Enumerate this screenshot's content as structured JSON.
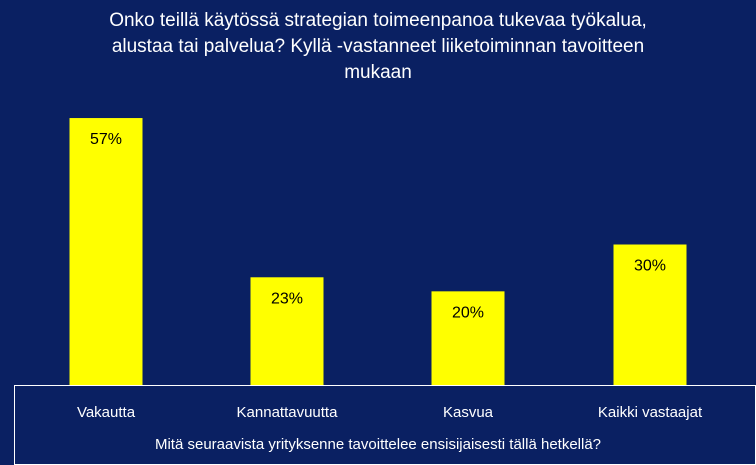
{
  "chart_data": {
    "type": "bar",
    "title_lines": [
      "Onko teillä käytössä strategian toimeenpanoa tukevaa työkalua,",
      "alustaa tai palvelua? Kyllä -vastanneet liiketoiminnan tavoitteen",
      "mukaan"
    ],
    "categories": [
      "Vakautta",
      "Kannattavuutta",
      "Kasvua",
      "Kaikki vastaajat"
    ],
    "values": [
      57,
      23,
      20,
      30
    ],
    "data_labels": [
      "57%",
      "23%",
      "20%",
      "30%"
    ],
    "xlabel": "Mitä seuraavista yrityksenne tavoittelee ensisijaisesti tällä hetkellä?",
    "ylim": [
      0,
      60
    ],
    "grid": false,
    "legend": "none",
    "colors": {
      "background": "#0a2062",
      "bar": "#ffff00",
      "text": "#ffffff",
      "label": "#000000",
      "frame": "#ffffff"
    }
  }
}
